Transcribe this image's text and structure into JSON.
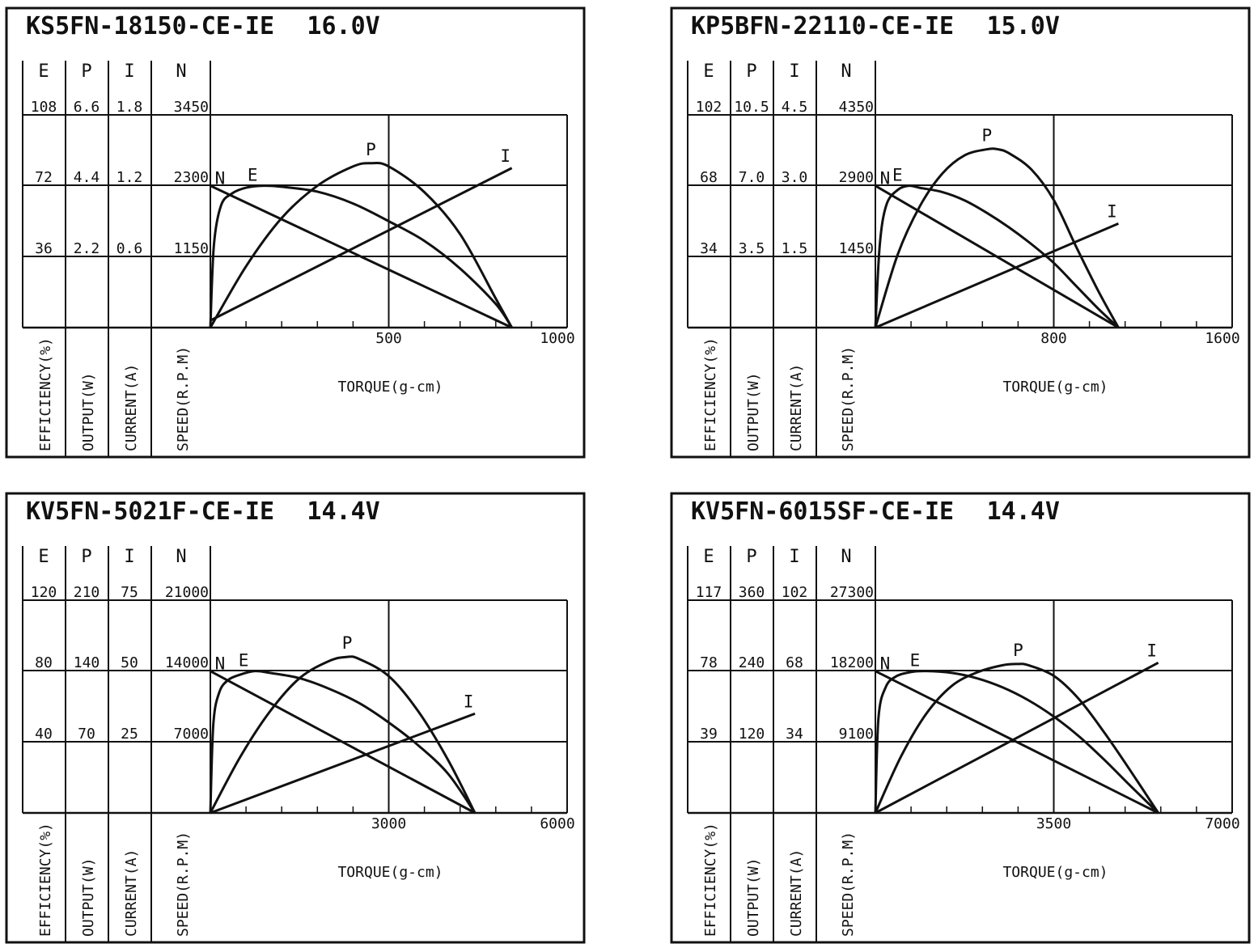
{
  "chart_data": [
    {
      "type": "line",
      "title": "KS5FN-18150-CE-IE",
      "voltage": "16.0V",
      "column_letters": [
        "E",
        "P",
        "I",
        "N"
      ],
      "column_labels": [
        "EFFICIENCY(%)",
        "OUTPUT(W)",
        "CURRENT(A)",
        "SPEED(R.P.M)"
      ],
      "y_ticks": {
        "E": [
          "108",
          "72",
          "36"
        ],
        "P": [
          "6.6",
          "4.4",
          "2.2"
        ],
        "I": [
          "1.8",
          "1.2",
          "0.6"
        ],
        "N": [
          "3450",
          "2300",
          "1150"
        ]
      },
      "xlabel": "TORQUE(g-cm)",
      "x_tick_labels": [
        "500",
        "1000"
      ],
      "xlim": [
        0,
        1000
      ],
      "ylims": {
        "E": [
          0,
          108
        ],
        "P": [
          0,
          6.6
        ],
        "I": [
          0,
          1.8
        ],
        "N": [
          0,
          3450
        ]
      },
      "series": [
        {
          "name": "N",
          "unit": "R.P.M",
          "x": [
            0,
            845
          ],
          "y": [
            2300,
            0
          ]
        },
        {
          "name": "I",
          "unit": "A",
          "x": [
            0,
            845
          ],
          "y": [
            0.06,
            1.35
          ]
        },
        {
          "name": "P",
          "unit": "W",
          "x": [
            0,
            100,
            200,
            300,
            400,
            450,
            500,
            600,
            700,
            800,
            845
          ],
          "y": [
            0,
            1.9,
            3.4,
            4.4,
            5.0,
            5.1,
            5.0,
            4.2,
            2.9,
            0.9,
            0
          ]
        },
        {
          "name": "E",
          "unit": "%",
          "x": [
            0,
            10,
            30,
            60,
            100,
            150,
            200,
            300,
            400,
            500,
            600,
            700,
            800,
            845
          ],
          "y": [
            0,
            42,
            62,
            68,
            71,
            72,
            71.5,
            69,
            63,
            54,
            44,
            30,
            12,
            0
          ]
        }
      ]
    },
    {
      "type": "line",
      "title": "KP5BFN-22110-CE-IE",
      "voltage": "15.0V",
      "column_letters": [
        "E",
        "P",
        "I",
        "N"
      ],
      "column_labels": [
        "EFFICIENCY(%)",
        "OUTPUT(W)",
        "CURRENT(A)",
        "SPEED(R.P.M)"
      ],
      "y_ticks": {
        "E": [
          "102",
          "68",
          "34"
        ],
        "P": [
          "10.5",
          "7.0",
          "3.5"
        ],
        "I": [
          "4.5",
          "3.0",
          "1.5"
        ],
        "N": [
          "4350",
          "2900",
          "1450"
        ]
      },
      "xlabel": "TORQUE(g-cm)",
      "x_tick_labels": [
        "800",
        "1600"
      ],
      "xlim": [
        0,
        1600
      ],
      "ylims": {
        "E": [
          0,
          102
        ],
        "P": [
          0,
          10.5
        ],
        "I": [
          0,
          4.5
        ],
        "N": [
          0,
          4350
        ]
      },
      "series": [
        {
          "name": "N",
          "unit": "R.P.M",
          "x": [
            0,
            1090
          ],
          "y": [
            2900,
            0
          ]
        },
        {
          "name": "I",
          "unit": "A",
          "x": [
            0,
            1090
          ],
          "y": [
            0,
            2.2
          ]
        },
        {
          "name": "P",
          "unit": "W",
          "x": [
            0,
            100,
            200,
            300,
            400,
            500,
            550,
            600,
            700,
            800,
            900,
            1000,
            1090
          ],
          "y": [
            0,
            3.6,
            6.0,
            7.6,
            8.5,
            8.8,
            8.8,
            8.6,
            7.8,
            6.3,
            4.0,
            1.8,
            0
          ]
        },
        {
          "name": "E",
          "unit": "%",
          "x": [
            0,
            20,
            50,
            100,
            150,
            200,
            300,
            400,
            500,
            600,
            700,
            800,
            900,
            1000,
            1090
          ],
          "y": [
            0,
            40,
            59,
            66,
            68,
            67,
            65,
            61,
            55,
            48,
            40,
            31,
            20,
            9,
            0
          ]
        }
      ]
    },
    {
      "type": "line",
      "title": "KV5FN-5021F-CE-IE",
      "voltage": "14.4V",
      "column_letters": [
        "E",
        "P",
        "I",
        "N"
      ],
      "column_labels": [
        "EFFICIENCY(%)",
        "OUTPUT(W)",
        "CURRENT(A)",
        "SPEED(R.P.M)"
      ],
      "y_ticks": {
        "E": [
          "120",
          "80",
          "40"
        ],
        "P": [
          "210",
          "140",
          "70"
        ],
        "I": [
          "75",
          "50",
          "25"
        ],
        "N": [
          "21000",
          "14000",
          "7000"
        ]
      },
      "xlabel": "TORQUE(g-cm)",
      "x_tick_labels": [
        "3000",
        "6000"
      ],
      "xlim": [
        0,
        6000
      ],
      "ylims": {
        "E": [
          0,
          120
        ],
        "P": [
          0,
          210
        ],
        "I": [
          0,
          75
        ],
        "N": [
          0,
          21000
        ]
      },
      "series": [
        {
          "name": "N",
          "unit": "R.P.M",
          "x": [
            0,
            4450
          ],
          "y": [
            14000,
            0
          ]
        },
        {
          "name": "I",
          "unit": "A",
          "x": [
            0,
            4450
          ],
          "y": [
            0,
            35
          ]
        },
        {
          "name": "P",
          "unit": "W",
          "x": [
            0,
            500,
            1000,
            1500,
            2000,
            2300,
            2500,
            3000,
            3500,
            4000,
            4450
          ],
          "y": [
            0,
            55,
            100,
            133,
            150,
            154,
            152,
            135,
            100,
            52,
            0
          ]
        },
        {
          "name": "E",
          "unit": "%",
          "x": [
            0,
            50,
            150,
            300,
            500,
            750,
            1000,
            1500,
            2000,
            2500,
            3000,
            3500,
            4000,
            4450
          ],
          "y": [
            0,
            50,
            68,
            75,
            78,
            80,
            79,
            76,
            70,
            62,
            51,
            38,
            22,
            0
          ]
        }
      ]
    },
    {
      "type": "line",
      "title": "KV5FN-6015SF-CE-IE",
      "voltage": "14.4V",
      "column_letters": [
        "E",
        "P",
        "I",
        "N"
      ],
      "column_labels": [
        "EFFICIENCY(%)",
        "OUTPUT(W)",
        "CURRENT(A)",
        "SPEED(R.P.M)"
      ],
      "y_ticks": {
        "E": [
          "117",
          "78",
          "39"
        ],
        "P": [
          "360",
          "240",
          "120"
        ],
        "I": [
          "102",
          "68",
          "34"
        ],
        "N": [
          "27300",
          "18200",
          "9100"
        ]
      },
      "xlabel": "TORQUE(g-cm)",
      "x_tick_labels": [
        "3500",
        "7000"
      ],
      "xlim": [
        0,
        7000
      ],
      "ylims": {
        "E": [
          0,
          117
        ],
        "P": [
          0,
          360
        ],
        "I": [
          0,
          102
        ],
        "N": [
          0,
          27300
        ]
      },
      "series": [
        {
          "name": "N",
          "unit": "R.P.M",
          "x": [
            0,
            5550
          ],
          "y": [
            18200,
            0
          ]
        },
        {
          "name": "I",
          "unit": "A",
          "x": [
            0,
            5550
          ],
          "y": [
            0,
            72
          ]
        },
        {
          "name": "P",
          "unit": "W",
          "x": [
            0,
            500,
            1000,
            1500,
            2000,
            2500,
            2800,
            3000,
            3500,
            4000,
            4500,
            5000,
            5550
          ],
          "y": [
            0,
            95,
            168,
            215,
            238,
            250,
            252,
            250,
            232,
            192,
            135,
            72,
            0
          ]
        },
        {
          "name": "E",
          "unit": "%",
          "x": [
            0,
            60,
            200,
            400,
            700,
            1000,
            1500,
            2000,
            2500,
            3000,
            3500,
            4000,
            4500,
            5000,
            5550
          ],
          "y": [
            0,
            52,
            69,
            75,
            77.5,
            78,
            77,
            74,
            69,
            62,
            53,
            42,
            29,
            15,
            0
          ]
        }
      ]
    }
  ]
}
